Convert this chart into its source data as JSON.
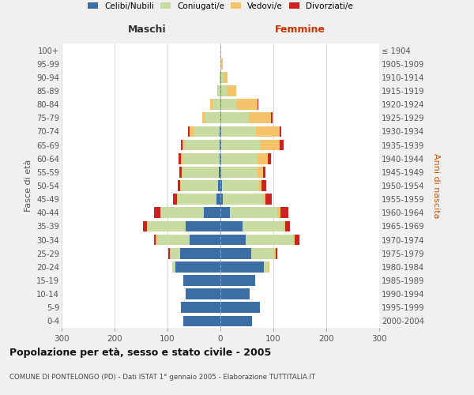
{
  "age_groups": [
    "0-4",
    "5-9",
    "10-14",
    "15-19",
    "20-24",
    "25-29",
    "30-34",
    "35-39",
    "40-44",
    "45-49",
    "50-54",
    "55-59",
    "60-64",
    "65-69",
    "70-74",
    "75-79",
    "80-84",
    "85-89",
    "90-94",
    "95-99",
    "100+"
  ],
  "birth_years": [
    "2000-2004",
    "1995-1999",
    "1990-1994",
    "1985-1989",
    "1980-1984",
    "1975-1979",
    "1970-1974",
    "1965-1969",
    "1960-1964",
    "1955-1959",
    "1950-1954",
    "1945-1949",
    "1940-1944",
    "1935-1939",
    "1930-1934",
    "1925-1929",
    "1920-1924",
    "1915-1919",
    "1910-1914",
    "1905-1909",
    "≤ 1904"
  ],
  "males": {
    "celibe": [
      70,
      75,
      65,
      70,
      85,
      76,
      58,
      65,
      32,
      8,
      4,
      3,
      2,
      2,
      2,
      0,
      0,
      0,
      0,
      0,
      0
    ],
    "coniugato": [
      0,
      0,
      0,
      0,
      6,
      18,
      62,
      72,
      80,
      72,
      70,
      68,
      70,
      65,
      48,
      28,
      14,
      4,
      2,
      0,
      0
    ],
    "vedovo": [
      0,
      0,
      0,
      0,
      0,
      2,
      2,
      2,
      2,
      2,
      2,
      2,
      2,
      5,
      8,
      6,
      5,
      2,
      0,
      0,
      0
    ],
    "divorziato": [
      0,
      0,
      0,
      0,
      0,
      2,
      4,
      8,
      12,
      8,
      5,
      5,
      5,
      3,
      3,
      0,
      0,
      0,
      0,
      0,
      0
    ]
  },
  "females": {
    "nubile": [
      60,
      75,
      55,
      65,
      82,
      58,
      48,
      42,
      18,
      5,
      3,
      2,
      2,
      2,
      2,
      2,
      2,
      2,
      1,
      0,
      0
    ],
    "coniugata": [
      0,
      0,
      0,
      0,
      8,
      44,
      90,
      78,
      90,
      75,
      70,
      68,
      68,
      72,
      65,
      52,
      28,
      10,
      5,
      2,
      0
    ],
    "vedova": [
      0,
      0,
      0,
      0,
      2,
      3,
      3,
      3,
      5,
      5,
      5,
      10,
      20,
      38,
      45,
      42,
      40,
      18,
      8,
      3,
      2
    ],
    "divorziata": [
      0,
      0,
      0,
      0,
      0,
      3,
      8,
      8,
      15,
      12,
      8,
      5,
      5,
      8,
      3,
      2,
      2,
      0,
      0,
      0,
      0
    ]
  },
  "colors": {
    "celibe": "#3a6ea5",
    "coniugato": "#c8dba0",
    "vedovo": "#f5c46a",
    "divorziato": "#cc2222"
  },
  "title": "Popolazione per età, sesso e stato civile - 2005",
  "subtitle": "COMUNE DI PONTELONGO (PD) - Dati ISTAT 1° gennaio 2005 - Elaborazione TUTTITALIA.IT",
  "xlabel_left": "Maschi",
  "xlabel_right": "Femmine",
  "ylabel_left": "Fasce di età",
  "ylabel_right": "Anni di nascita",
  "xlim": 300,
  "background_color": "#f0f0f0",
  "plot_background": "#ffffff"
}
